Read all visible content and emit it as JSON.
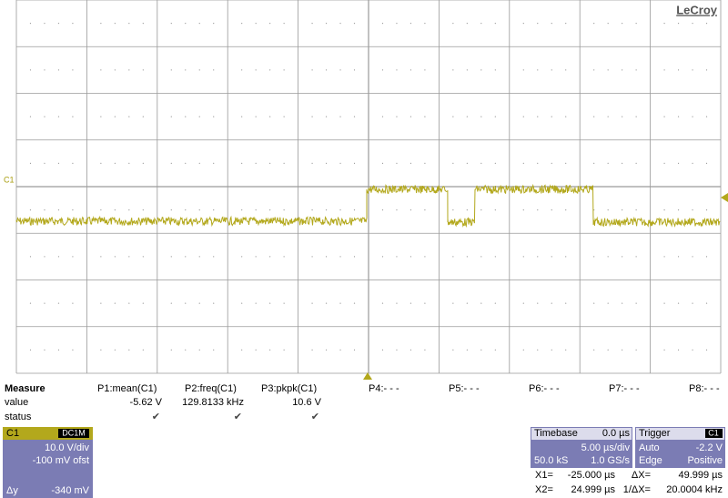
{
  "logo": "LeCroy",
  "channel_marker": "C1",
  "measure": {
    "title": "Measure",
    "row_labels": [
      "value",
      "status"
    ],
    "params": [
      {
        "name": "P1:mean(C1)",
        "value": "-5.62 V",
        "status": "✔"
      },
      {
        "name": "P2:freq(C1)",
        "value": "129.8133 kHz",
        "status": "✔"
      },
      {
        "name": "P3:pkpk(C1)",
        "value": "10.6 V",
        "status": "✔"
      },
      {
        "name": "P4:- - -"
      },
      {
        "name": "P5:- - -"
      },
      {
        "name": "P6:- - -"
      },
      {
        "name": "P7:- - -"
      },
      {
        "name": "P8:- - -"
      }
    ]
  },
  "channel": {
    "name": "C1",
    "coupling": "DC1M",
    "scale": "10.0 V/div",
    "offset": "-100 mV ofst",
    "dy_label": "Δy",
    "dy": "-340 mV"
  },
  "timebase": {
    "label": "Timebase",
    "delay": "0.0 µs",
    "scale": "5.00 µs/div",
    "samples": "50.0 kS",
    "rate": "1.0 GS/s"
  },
  "trigger": {
    "label": "Trigger",
    "channel": "C1",
    "mode": "Auto",
    "level": "-2.2 V",
    "type": "Edge",
    "slope": "Positive"
  },
  "cursors": [
    {
      "label": "X1=",
      "value": "-25.000 µs",
      "delta_label": "ΔX=",
      "delta": "49.999 µs"
    },
    {
      "label": "X2=",
      "value": "24.999 µs",
      "delta_label": "1/ΔX=",
      "delta": "20.0004 kHz"
    }
  ]
}
